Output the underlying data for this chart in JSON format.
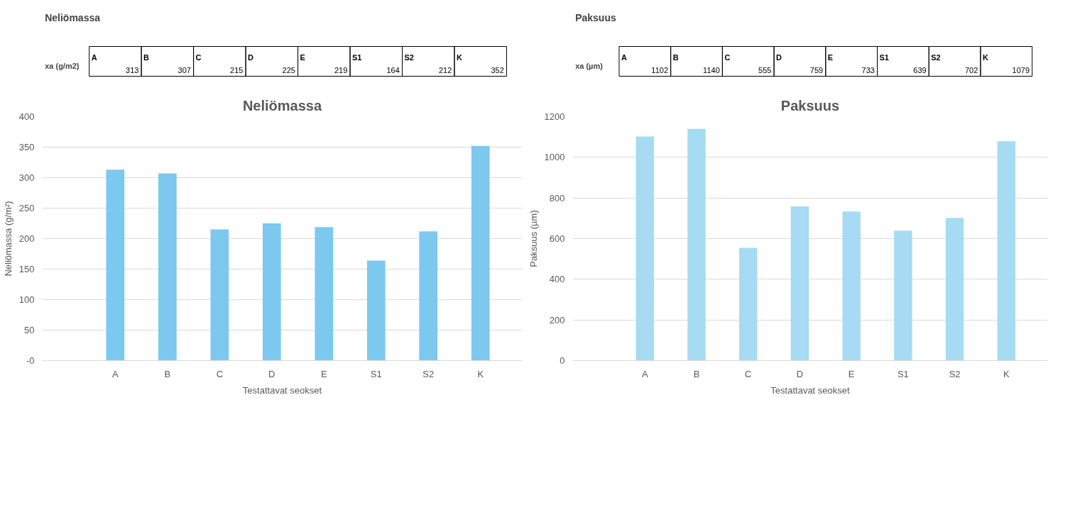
{
  "chart_data": [
    {
      "type": "bar",
      "title": "Neliömassa",
      "xlabel": "Testattavat seokset",
      "ylabel": "Neliömassa (g/m²)",
      "categories": [
        "A",
        "B",
        "C",
        "D",
        "E",
        "S1",
        "S2",
        "K"
      ],
      "values": [
        313,
        307,
        215,
        225,
        219,
        164,
        212,
        352
      ],
      "color": "#7cc8ef",
      "ylim": [
        0,
        400
      ],
      "yticks": [
        {
          "value": 0,
          "label": "-0"
        },
        50,
        100,
        150,
        200,
        250,
        300,
        350,
        400
      ],
      "grid": "y",
      "data_labels": true,
      "annotations": [
        "Neliömassa",
        "xa (g/m2)"
      ]
    },
    {
      "type": "bar",
      "title": "Paksuus",
      "xlabel": "Testattavat seokset",
      "ylabel": "Paksuus (µm)",
      "categories": [
        "A",
        "B",
        "C",
        "D",
        "E",
        "S1",
        "S2",
        "K"
      ],
      "values": [
        1102,
        1140,
        555,
        759,
        733,
        639,
        702,
        1079
      ],
      "color": "#a6dbf3",
      "ylim": [
        0,
        1200
      ],
      "yticks": [
        0,
        200,
        400,
        600,
        800,
        1000,
        1200
      ],
      "grid": "y",
      "data_labels": true,
      "annotations": [
        "Paksuus",
        "xa (µm)"
      ]
    }
  ]
}
